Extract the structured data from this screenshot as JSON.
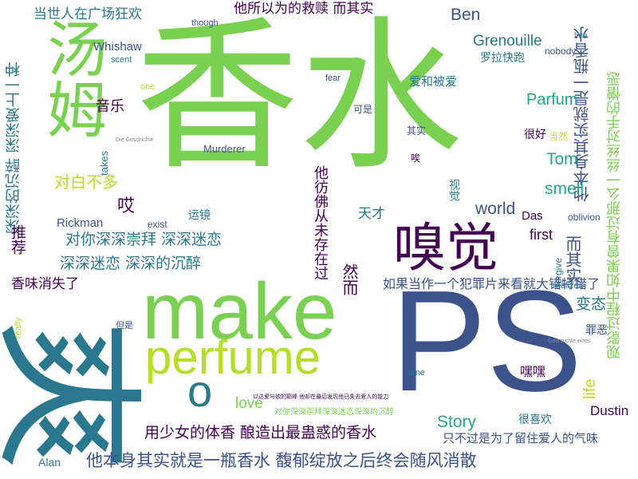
{
  "palette": {
    "green": "#7ad151",
    "teal": "#2a788e",
    "navy": "#3b528b",
    "purple": "#440154",
    "lime": "#b5de2b",
    "yellow": "#fde725",
    "sea": "#22a884",
    "grey": "#888888"
  },
  "words": [
    {
      "text": "香水",
      "color": "#7ad151"
    },
    {
      "text": "爽",
      "color": "#2a788e"
    },
    {
      "text": "PS",
      "color": "#3b528b"
    },
    {
      "text": "make",
      "color": "#7ad151"
    },
    {
      "text": "汤姆",
      "color": "#7ad151"
    },
    {
      "text": "嗅觉",
      "color": "#440154"
    },
    {
      "text": "perfume",
      "color": "#b5de2b"
    },
    {
      "text": "o",
      "color": "#2a788e"
    },
    {
      "text": "他本身其实就是一瓶香水 馥郁绽放之后终会随风消散",
      "color": "#3b528b"
    },
    {
      "text": "用少女的体香 酿造出最蛊惑的香水",
      "color": "#440154"
    },
    {
      "text": "对你深深崇拜 深深迷恋",
      "color": "#2a788e"
    },
    {
      "text": "深深迷恋 深深的沉醉",
      "color": "#2a788e"
    },
    {
      "text": "深深的沉醉 深深爱上一种",
      "color": "#2a788e"
    },
    {
      "text": "当世人在广场狂欢",
      "color": "#2a788e"
    },
    {
      "text": "他所以为的救赎 而其实",
      "color": "#440154"
    },
    {
      "text": "他本身其实就是一瓶香水",
      "color": "#3b528b"
    },
    {
      "text": "观影过程中如果曾有过那么一丝丝对手的憎恶",
      "color": "#7ad151"
    },
    {
      "text": "如果当作一个犯罪片来看就大错特错了",
      "color": "#3b528b"
    },
    {
      "text": "只不过是为了留住爱人的气味",
      "color": "#3b528b"
    },
    {
      "text": "对你深深崇拜深深迷恋深深的沉醉",
      "color": "#7ad151"
    },
    {
      "text": "以达爱与欲的巅峰 他却在最后发现他已失去爱人的能力",
      "color": "#440154"
    },
    {
      "text": "他彷佛从未存在过",
      "color": "#440154"
    },
    {
      "text": "香味消失了",
      "color": "#440154"
    },
    {
      "text": "对白不多",
      "color": "#b5de2b"
    },
    {
      "text": "爱和被爱",
      "color": "#2a788e"
    },
    {
      "text": "罗拉快跑",
      "color": "#2a788e"
    },
    {
      "text": "音乐",
      "color": "#440154"
    },
    {
      "text": "推荐",
      "color": "#440154"
    },
    {
      "text": "天才",
      "color": "#2a788e"
    },
    {
      "text": "哎",
      "color": "#440154"
    },
    {
      "text": "然而",
      "color": "#440154"
    },
    {
      "text": "而其实",
      "color": "#3b528b"
    },
    {
      "text": "变态",
      "color": "#2a788e"
    },
    {
      "text": "罪恶",
      "color": "#3b528b"
    },
    {
      "text": "嘿嘿",
      "color": "#440154"
    },
    {
      "text": "很喜欢",
      "color": "#2a788e"
    },
    {
      "text": "很好",
      "color": "#440154"
    },
    {
      "text": "运镜",
      "color": "#2a788e"
    },
    {
      "text": "视觉",
      "color": "#2a788e"
    },
    {
      "text": "可是",
      "color": "#3b528b"
    },
    {
      "text": "其实",
      "color": "#3b528b"
    },
    {
      "text": "唉",
      "color": "#440154"
    },
    {
      "text": "但是",
      "color": "#3b528b"
    },
    {
      "text": "当然",
      "color": "#b5de2b"
    },
    {
      "text": "Ben",
      "color": "#3b528b"
    },
    {
      "text": "Grenouille",
      "color": "#2a788e"
    },
    {
      "text": "Parfum",
      "color": "#22a884"
    },
    {
      "text": "Tom",
      "color": "#22a884"
    },
    {
      "text": "smell",
      "color": "#22a884"
    },
    {
      "text": "world",
      "color": "#3b528b"
    },
    {
      "text": "first",
      "color": "#440154"
    },
    {
      "text": "Story",
      "color": "#22a884"
    },
    {
      "text": "love",
      "color": "#7ad151"
    },
    {
      "text": "life",
      "color": "#b5de2b"
    },
    {
      "text": "Dustin",
      "color": "#440154"
    },
    {
      "text": "Whishaw",
      "color": "#3b528b"
    },
    {
      "text": "Rickman",
      "color": "#3b528b"
    },
    {
      "text": "Das",
      "color": "#440154"
    },
    {
      "text": "Alan",
      "color": "#2a788e"
    },
    {
      "text": "Murderer",
      "color": "#3b528b"
    },
    {
      "text": "takes",
      "color": "#2a788e"
    },
    {
      "text": "exist",
      "color": "#3b528b"
    },
    {
      "text": "scent",
      "color": "#2a788e"
    },
    {
      "text": "fear",
      "color": "#3b528b"
    },
    {
      "text": "one",
      "color": "#b5de2b"
    },
    {
      "text": "though",
      "color": "#3b528b"
    },
    {
      "text": "nobody",
      "color": "#3b528b"
    },
    {
      "text": "live",
      "color": "#2a788e"
    },
    {
      "text": "forgive",
      "color": "#2a788e"
    },
    {
      "text": "oblivion",
      "color": "#3b528b"
    },
    {
      "text": "realized",
      "color": "#2a788e"
    },
    {
      "text": "time",
      "color": "#2a788e"
    },
    {
      "text": "really",
      "color": "#b5de2b"
    },
    {
      "text": "Geschichte eines",
      "color": "#888888"
    },
    {
      "text": "Die Geschichte",
      "color": "#888888"
    }
  ]
}
